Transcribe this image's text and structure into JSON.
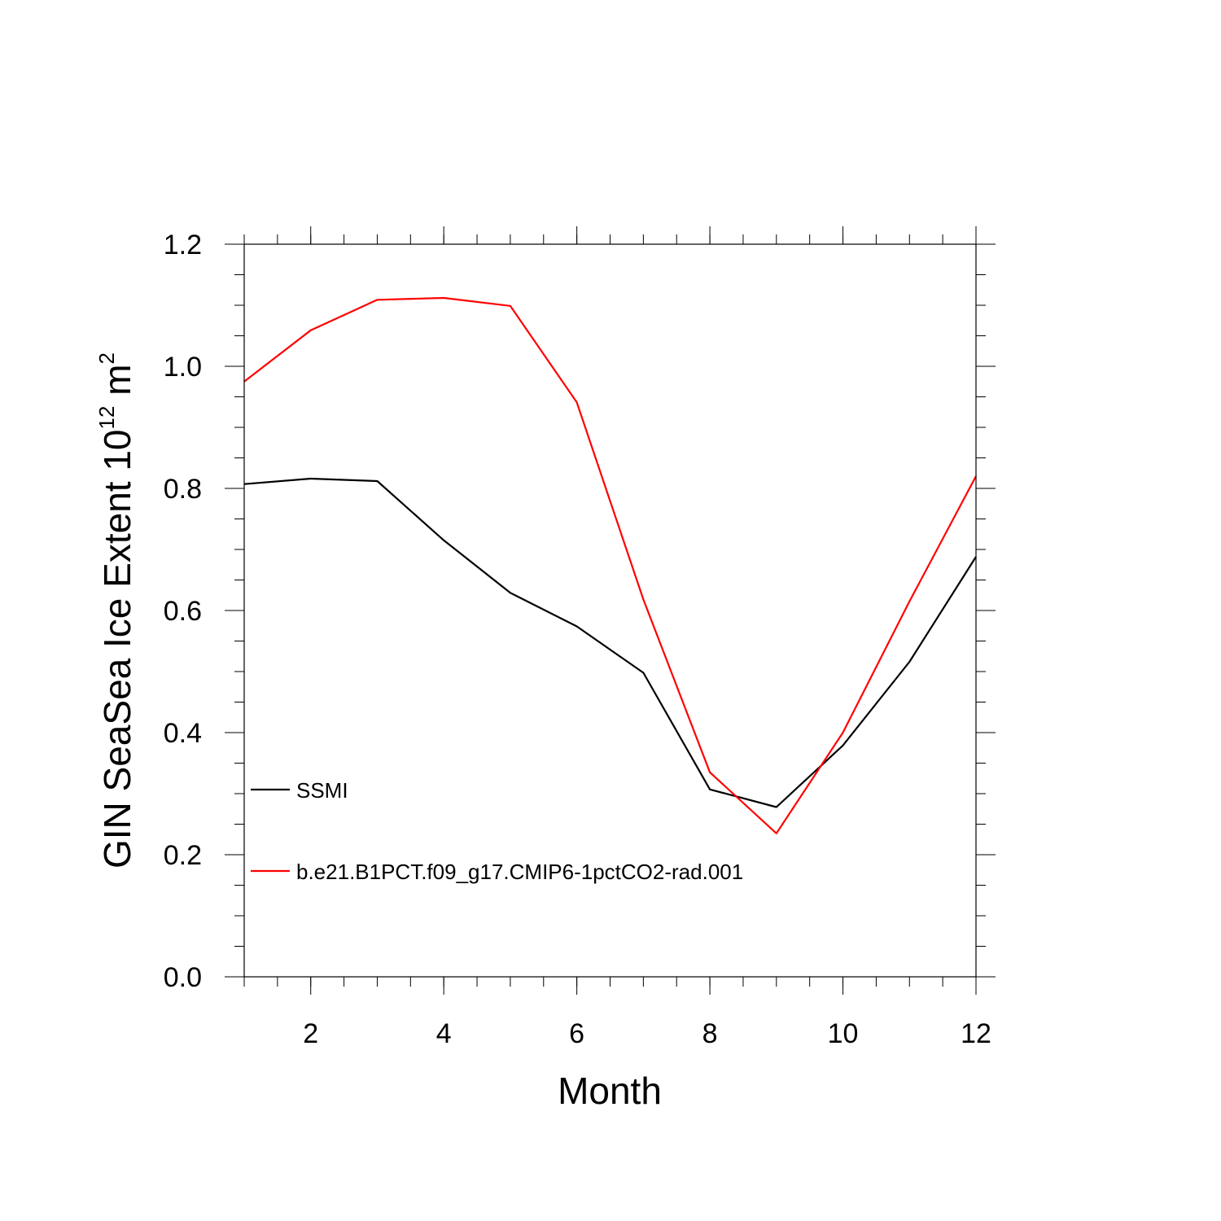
{
  "chart_data": {
    "type": "line",
    "xlabel": "Month",
    "ylabel": {
      "text": "GIN SeaSea Ice Extent 10",
      "exponent_base_sup": "12",
      "unit": " m",
      "unit_sup": "2"
    },
    "xlim": [
      1,
      12
    ],
    "ylim": [
      0.0,
      1.2
    ],
    "x_ticks": [
      2,
      4,
      6,
      8,
      10,
      12
    ],
    "x_tick_labels": [
      "2",
      "4",
      "6",
      "8",
      "10",
      "12"
    ],
    "y_ticks": [
      0.0,
      0.2,
      0.4,
      0.6,
      0.8,
      1.0,
      1.2
    ],
    "y_tick_labels": [
      "0.0",
      "0.2",
      "0.4",
      "0.6",
      "0.8",
      "1.0",
      "1.2"
    ],
    "grid": false,
    "legend_position": "lower-left",
    "x": [
      1,
      2,
      3,
      4,
      5,
      6,
      7,
      8,
      9,
      10,
      11,
      12
    ],
    "series": [
      {
        "name": "SSMI",
        "color": "#000000",
        "values": [
          0.807,
          0.816,
          0.812,
          0.715,
          0.629,
          0.574,
          0.498,
          0.307,
          0.278,
          0.379,
          0.516,
          0.688
        ]
      },
      {
        "name": "b.e21.B1PCT.f09_g17.CMIP6-1pctCO2-rad.001",
        "color": "#ff0000",
        "values": [
          0.975,
          1.059,
          1.109,
          1.112,
          1.099,
          0.941,
          0.618,
          0.335,
          0.235,
          0.4,
          0.615,
          0.82
        ]
      }
    ]
  }
}
